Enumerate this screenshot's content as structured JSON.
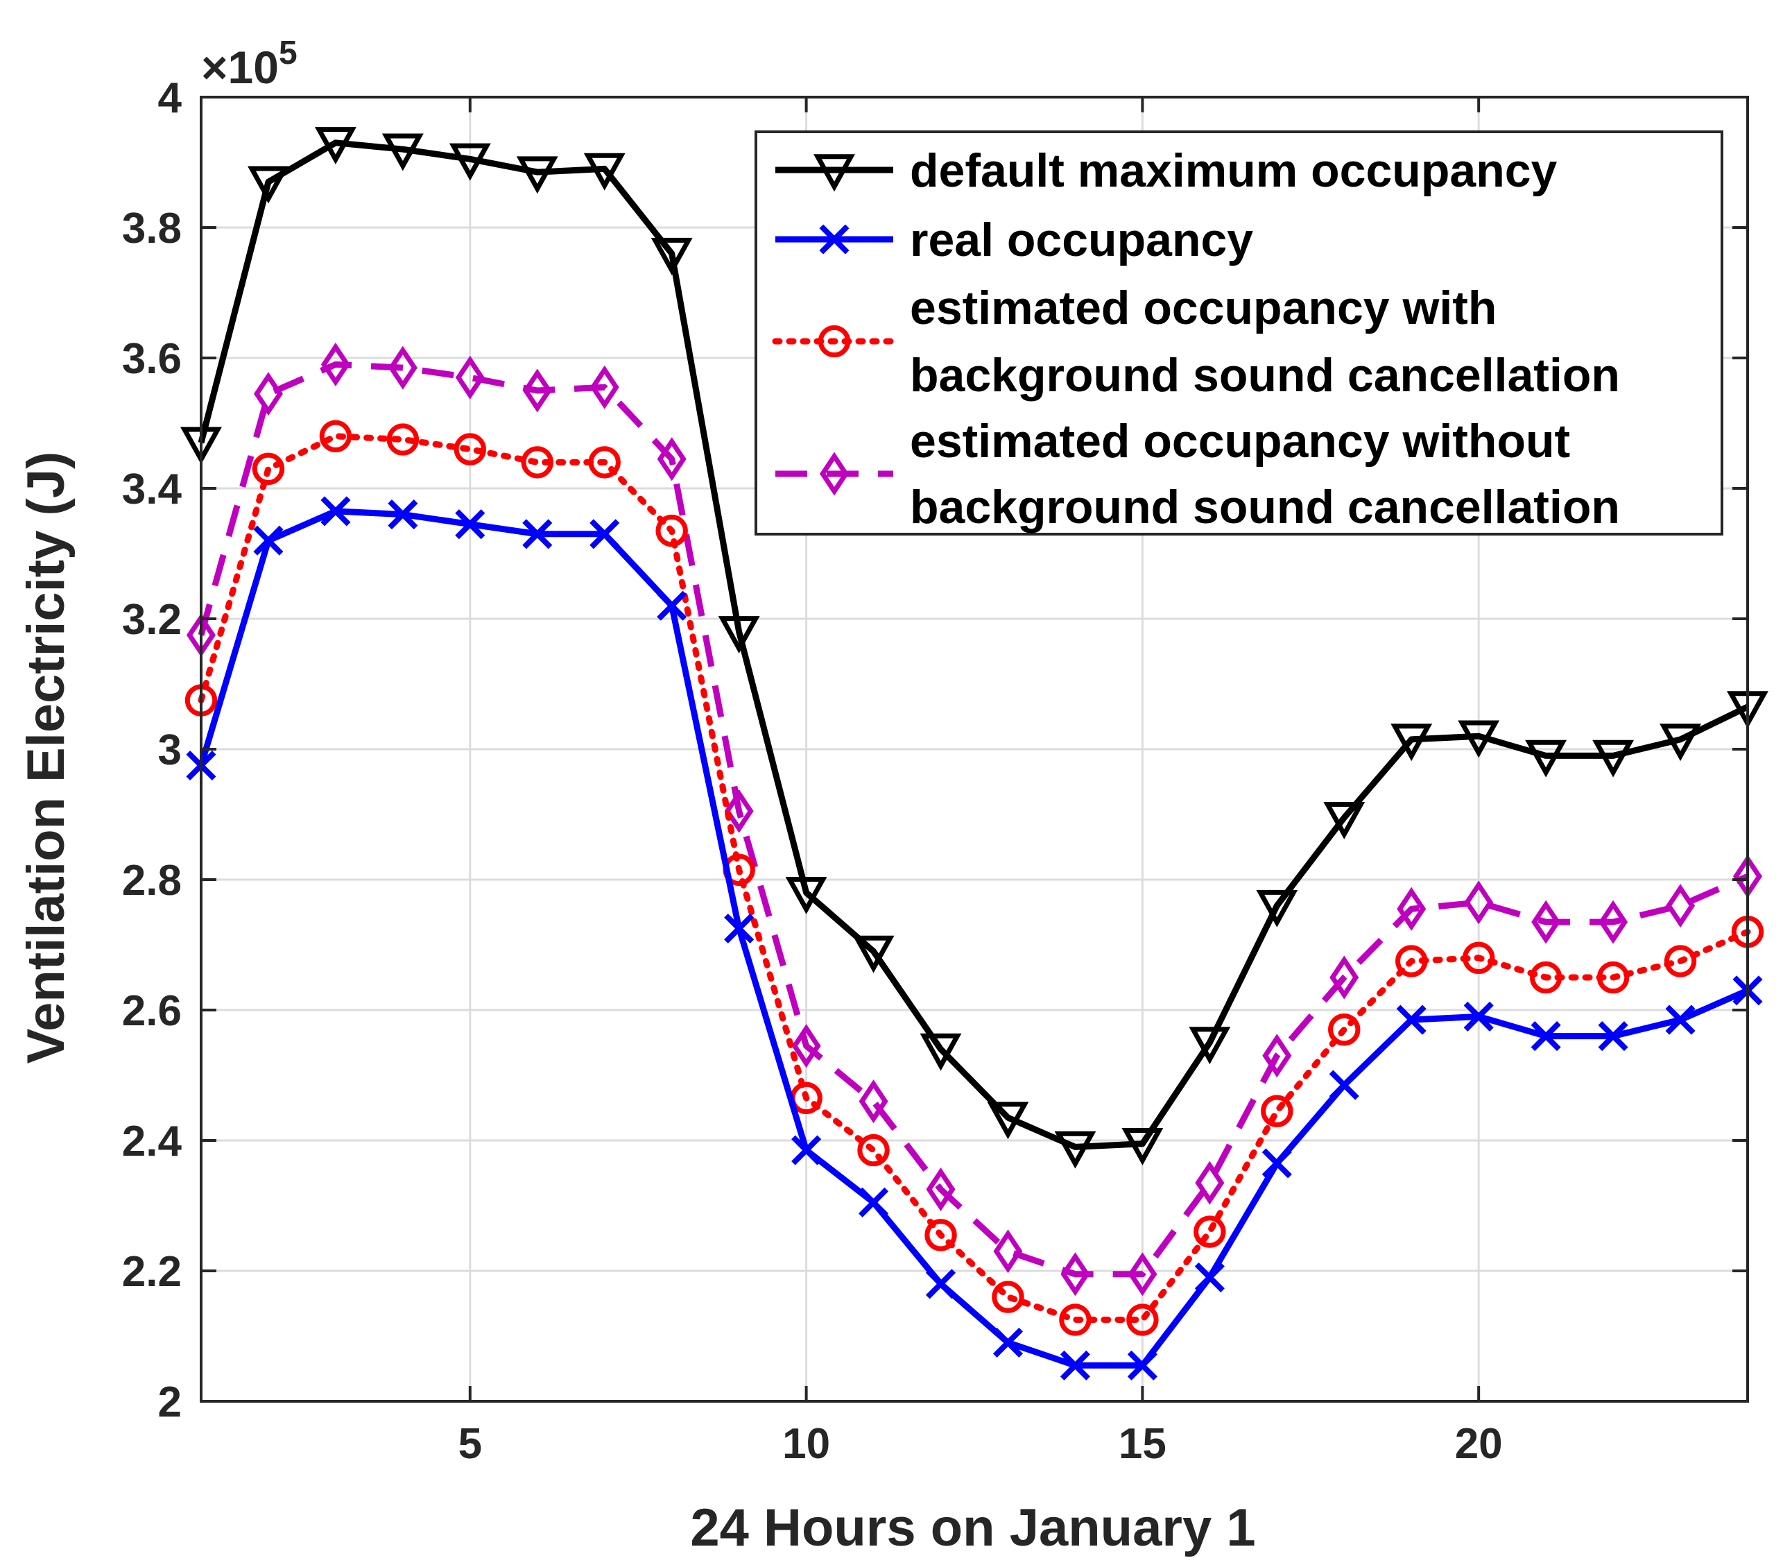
{
  "chart_data": {
    "type": "line",
    "title": "",
    "xlabel": "24 Hours on January 1",
    "ylabel": "Ventilation Electricity (J)",
    "y_exponent_prefix": "×10",
    "y_exponent_power": "5",
    "xlim": [
      1,
      24
    ],
    "ylim": [
      2,
      4
    ],
    "x_ticks": [
      5,
      10,
      15,
      20
    ],
    "y_ticks": [
      2,
      2.2,
      2.4,
      2.6,
      2.8,
      3,
      3.2,
      3.4,
      3.6,
      3.8,
      4
    ],
    "y_tick_labels": [
      "2",
      "2.2",
      "2.4",
      "2.6",
      "2.8",
      "3",
      "3.2",
      "3.4",
      "3.6",
      "3.8",
      "4"
    ],
    "grid": true,
    "legend_position": "top-right",
    "x": [
      1,
      2,
      3,
      4,
      5,
      6,
      7,
      8,
      9,
      10,
      11,
      12,
      13,
      14,
      15,
      16,
      17,
      18,
      19,
      20,
      21,
      22,
      23,
      24
    ],
    "series": [
      {
        "name": "default maximum occupancy",
        "legend_lines": [
          "default maximum occupancy"
        ],
        "color": "#000000",
        "dash": "solid",
        "marker": "triangle-down",
        "values": [
          3.47,
          3.87,
          3.93,
          3.92,
          3.905,
          3.885,
          3.89,
          3.76,
          3.18,
          2.78,
          2.69,
          2.54,
          2.435,
          2.39,
          2.395,
          2.55,
          2.76,
          2.895,
          3.015,
          3.02,
          2.99,
          2.99,
          3.015,
          3.065
        ]
      },
      {
        "name": "real occupancy",
        "legend_lines": [
          "real occupancy"
        ],
        "color": "#0000ff",
        "dash": "solid",
        "marker": "x",
        "values": [
          2.975,
          3.32,
          3.365,
          3.36,
          3.345,
          3.33,
          3.33,
          3.22,
          2.725,
          2.385,
          2.305,
          2.18,
          2.09,
          2.055,
          2.055,
          2.19,
          2.365,
          2.485,
          2.585,
          2.59,
          2.56,
          2.56,
          2.585,
          2.63
        ]
      },
      {
        "name": "estimated occupancy with background sound cancellation",
        "legend_lines": [
          "estimated occupancy with",
          "background sound cancellation"
        ],
        "color": "#ff0000",
        "dash": "dotted",
        "marker": "circle",
        "values": [
          3.075,
          3.43,
          3.48,
          3.475,
          3.46,
          3.44,
          3.44,
          3.335,
          2.815,
          2.465,
          2.385,
          2.255,
          2.16,
          2.125,
          2.125,
          2.26,
          2.445,
          2.57,
          2.675,
          2.68,
          2.65,
          2.65,
          2.675,
          2.72
        ]
      },
      {
        "name": "estimated occupancy without background sound cancellation",
        "legend_lines": [
          "estimated occupancy without",
          "background sound cancellation"
        ],
        "color": "#bf00bf",
        "dash": "dashed",
        "marker": "diamond",
        "values": [
          3.175,
          3.545,
          3.59,
          3.585,
          3.57,
          3.55,
          3.555,
          3.445,
          2.905,
          2.545,
          2.46,
          2.325,
          2.23,
          2.195,
          2.195,
          2.335,
          2.53,
          2.65,
          2.755,
          2.765,
          2.735,
          2.735,
          2.76,
          2.805
        ]
      }
    ]
  }
}
